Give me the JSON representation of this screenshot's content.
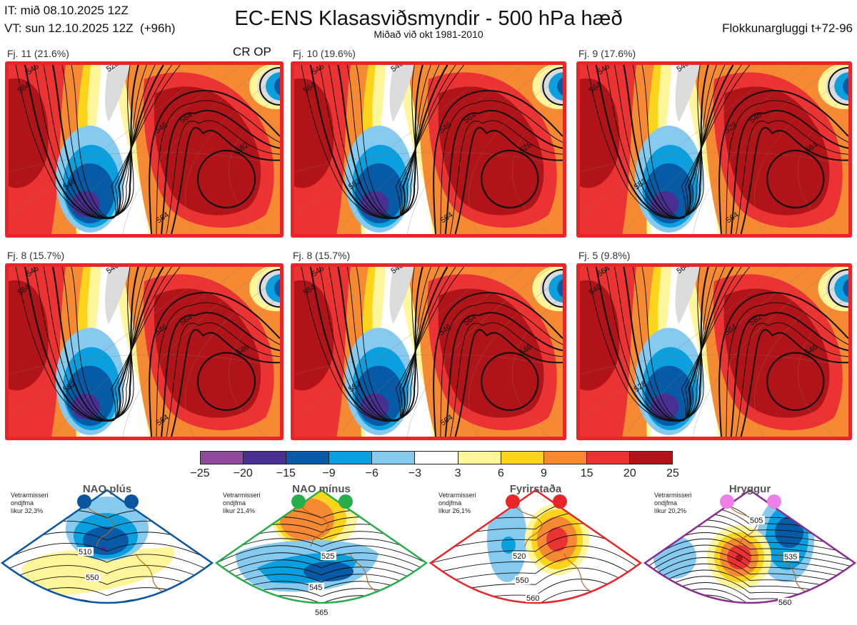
{
  "header": {
    "init_time": "IT: mið 08.10.2025 12Z",
    "valid_time": "VT: sun 12.10.2025 12Z  (+96h)",
    "title": "EC-ENS Klasasviðsmyndir - 500 hPa hæð",
    "subtitle": "Miðað við okt 1981-2010",
    "window": "Flokkunargluggi t+72-96",
    "cr_op": "CR OP"
  },
  "clusters": [
    {
      "label": "Fj. 11 (21.6%)",
      "contour_labels": [
        "546",
        "564",
        "546",
        "564",
        "546",
        "582",
        "528",
        "564"
      ]
    },
    {
      "label": "Fj. 10 (19.6%)",
      "contour_labels": [
        "546",
        "564",
        "546",
        "564",
        "582",
        "528",
        "546",
        "564"
      ]
    },
    {
      "label": "Fj. 9 (17.6%)",
      "contour_labels": [
        "546",
        "564",
        "528",
        "546",
        "582",
        "564",
        "546",
        "564"
      ]
    },
    {
      "label": "Fj. 8 (15.7%)",
      "contour_labels": [
        "546",
        "564",
        "546",
        "564",
        "582",
        "546",
        "546",
        "564"
      ]
    },
    {
      "label": "Fj. 8 (15.7%)",
      "contour_labels": [
        "546",
        "564",
        "546",
        "564",
        "582",
        "546",
        "546",
        "564"
      ]
    },
    {
      "label": "Fj. 5 (9.8%)",
      "contour_labels": [
        "564",
        "546",
        "564",
        "582",
        "528",
        "546",
        "564"
      ]
    }
  ],
  "colorbar": {
    "ticks": [
      "−25",
      "−20",
      "−15",
      "−9",
      "−6",
      "−3",
      "3",
      "6",
      "9",
      "15",
      "20",
      "25"
    ],
    "colors": [
      "#8e4a9c",
      "#4a2f93",
      "#075aa5",
      "#0aa0e0",
      "#86caef",
      "#ffffff",
      "#fff59a",
      "#fdd41c",
      "#f58a32",
      "#ec3333",
      "#b01318"
    ]
  },
  "regimes": [
    {
      "title": "NAO plús",
      "note": "Vetrarmisseri\nondjfma\nlíkur 32,3%",
      "color": "#0a55a0",
      "labels": [
        "510",
        "550"
      ]
    },
    {
      "title": "NAO mínus",
      "note": "Vetrarmisseri\nondjfma\nlíkur 21,4%",
      "color": "#27ae4a",
      "labels": [
        "525",
        "545",
        "565"
      ]
    },
    {
      "title": "Fyrirstaða",
      "note": "Vetrarmisseri\nondjfma\nlíkur 26,1%",
      "color": "#e8262a",
      "labels": [
        "520",
        "550",
        "560"
      ]
    },
    {
      "title": "Hryggur",
      "note": "Vetrarmisseri\nondjfma\nlíkur 20,2%",
      "color": "#8b2c95",
      "dot_color": "#ee7ee8",
      "labels": [
        "505",
        "535",
        "560"
      ]
    }
  ]
}
